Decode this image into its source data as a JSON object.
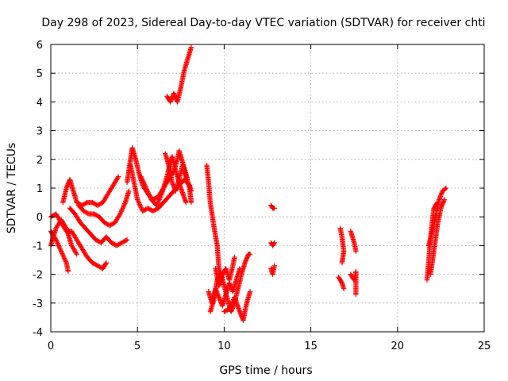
{
  "chart_data": {
    "type": "scatter",
    "title": "Day 298 of 2023, Sidereal Day-to-day VTEC variation (SDTVAR) for receiver chti",
    "xlabel": "GPS time / hours",
    "ylabel": "SDTVAR / TECUs",
    "xlim": [
      0,
      25
    ],
    "ylim": [
      -4,
      6
    ],
    "xticks": [
      0,
      5,
      10,
      15,
      20,
      25
    ],
    "yticks": [
      -4,
      -3,
      -2,
      -1,
      0,
      1,
      2,
      3,
      4,
      5,
      6
    ],
    "xtick_labels": [
      "0",
      "5",
      "10",
      "15",
      "20",
      "25"
    ],
    "ytick_labels": [
      "-4",
      "-3",
      "-2",
      "-1",
      "0",
      "1",
      "2",
      "3",
      "4",
      "5",
      "6"
    ],
    "grid": true,
    "marker": "+",
    "series": [
      {
        "name": "SDTVAR",
        "color": "#ff0000",
        "segments": [
          [
            [
              0.0,
              -0.5
            ],
            [
              0.3,
              -0.8
            ],
            [
              0.6,
              -1.2
            ],
            [
              0.9,
              -1.6
            ],
            [
              1.0,
              -1.9
            ]
          ],
          [
            [
              0.0,
              -1.0
            ],
            [
              0.3,
              -0.4
            ],
            [
              0.6,
              -0.1
            ],
            [
              0.9,
              -0.4
            ],
            [
              1.2,
              -1.0
            ],
            [
              1.5,
              -1.3
            ]
          ],
          [
            [
              0.0,
              0.0
            ],
            [
              0.3,
              0.1
            ],
            [
              0.6,
              -0.2
            ],
            [
              0.9,
              -0.5
            ],
            [
              1.2,
              -0.5
            ],
            [
              1.5,
              -0.8
            ],
            [
              1.8,
              -1.1
            ],
            [
              2.1,
              -1.4
            ],
            [
              2.4,
              -1.6
            ],
            [
              2.7,
              -1.7
            ],
            [
              3.0,
              -1.8
            ],
            [
              3.2,
              -1.6
            ]
          ],
          [
            [
              0.7,
              0.5
            ],
            [
              0.9,
              1.0
            ],
            [
              1.1,
              1.3
            ],
            [
              1.3,
              0.9
            ],
            [
              1.5,
              0.5
            ],
            [
              1.8,
              0.4
            ],
            [
              2.1,
              0.5
            ],
            [
              2.4,
              0.5
            ],
            [
              2.7,
              0.4
            ],
            [
              3.0,
              0.5
            ],
            [
              3.3,
              0.8
            ],
            [
              3.6,
              1.1
            ],
            [
              3.9,
              1.4
            ]
          ],
          [
            [
              1.1,
              0.3
            ],
            [
              1.4,
              0.1
            ],
            [
              1.7,
              -0.2
            ],
            [
              2.0,
              -0.4
            ],
            [
              2.3,
              -0.6
            ],
            [
              2.6,
              -0.8
            ],
            [
              2.9,
              -0.9
            ],
            [
              3.2,
              -0.7
            ],
            [
              3.5,
              -0.9
            ],
            [
              3.8,
              -1.0
            ],
            [
              4.1,
              -0.9
            ],
            [
              4.4,
              -0.8
            ]
          ],
          [
            [
              1.6,
              0.4
            ],
            [
              1.9,
              0.2
            ],
            [
              2.2,
              0.1
            ],
            [
              2.5,
              0.1
            ],
            [
              2.8,
              0.0
            ],
            [
              3.1,
              -0.2
            ],
            [
              3.4,
              -0.3
            ],
            [
              3.7,
              -0.2
            ],
            [
              4.0,
              0.1
            ],
            [
              4.3,
              0.5
            ],
            [
              4.5,
              0.9
            ]
          ],
          [
            [
              4.4,
              1.2
            ],
            [
              4.6,
              2.0
            ],
            [
              4.7,
              2.4
            ],
            [
              4.9,
              2.0
            ],
            [
              5.1,
              1.5
            ],
            [
              5.3,
              1.1
            ],
            [
              5.6,
              0.8
            ],
            [
              5.9,
              0.6
            ],
            [
              6.2,
              0.7
            ],
            [
              6.5,
              1.0
            ],
            [
              6.8,
              1.3
            ],
            [
              7.1,
              1.6
            ],
            [
              7.3,
              2.0
            ],
            [
              7.4,
              2.3
            ],
            [
              7.6,
              1.9
            ],
            [
              7.8,
              1.5
            ],
            [
              8.0,
              1.0
            ],
            [
              8.1,
              0.5
            ]
          ],
          [
            [
              4.6,
              1.8
            ],
            [
              4.8,
              1.2
            ],
            [
              5.0,
              0.6
            ],
            [
              5.3,
              0.2
            ],
            [
              5.6,
              0.3
            ],
            [
              5.9,
              0.2
            ],
            [
              6.2,
              0.3
            ],
            [
              6.5,
              0.5
            ],
            [
              6.8,
              0.7
            ],
            [
              7.1,
              0.9
            ],
            [
              7.4,
              1.1
            ],
            [
              7.7,
              1.3
            ],
            [
              8.0,
              1.1
            ],
            [
              8.1,
              0.9
            ]
          ],
          [
            [
              5.2,
              1.4
            ],
            [
              5.5,
              1.0
            ],
            [
              5.8,
              0.6
            ],
            [
              6.1,
              0.4
            ],
            [
              6.4,
              0.8
            ],
            [
              6.7,
              1.4
            ],
            [
              6.9,
              1.9
            ],
            [
              7.0,
              2.1
            ],
            [
              7.2,
              1.6
            ],
            [
              7.5,
              1.0
            ],
            [
              7.8,
              0.5
            ]
          ],
          [
            [
              6.6,
              2.2
            ],
            [
              6.8,
              1.8
            ],
            [
              7.0,
              1.2
            ],
            [
              7.2,
              0.9
            ],
            [
              7.4,
              1.3
            ],
            [
              7.6,
              1.8
            ],
            [
              7.8,
              1.4
            ]
          ],
          [
            [
              6.7,
              4.2
            ],
            [
              6.9,
              4.0
            ],
            [
              7.1,
              4.3
            ],
            [
              7.3,
              4.0
            ],
            [
              7.5,
              4.5
            ],
            [
              7.7,
              5.1
            ],
            [
              7.9,
              5.5
            ],
            [
              8.1,
              5.9
            ]
          ],
          [
            [
              9.0,
              1.8
            ],
            [
              9.1,
              1.2
            ],
            [
              9.2,
              0.5
            ],
            [
              9.4,
              -0.3
            ],
            [
              9.6,
              -1.0
            ],
            [
              9.7,
              -1.8
            ],
            [
              9.8,
              -2.3
            ]
          ],
          [
            [
              9.1,
              -2.6
            ],
            [
              9.3,
              -3.0
            ],
            [
              9.5,
              -2.5
            ],
            [
              9.7,
              -2.8
            ],
            [
              9.9,
              -3.1
            ],
            [
              10.1,
              -2.7
            ],
            [
              10.3,
              -2.3
            ],
            [
              10.5,
              -2.6
            ],
            [
              10.7,
              -2.2
            ],
            [
              10.9,
              -1.8
            ]
          ],
          [
            [
              9.2,
              -3.3
            ],
            [
              9.4,
              -2.9
            ],
            [
              9.6,
              -2.2
            ],
            [
              9.8,
              -1.9
            ],
            [
              10.0,
              -2.4
            ],
            [
              10.2,
              -2.9
            ],
            [
              10.4,
              -3.3
            ],
            [
              10.6,
              -3.0
            ],
            [
              10.8,
              -2.5
            ],
            [
              11.0,
              -2.0
            ],
            [
              11.2,
              -1.6
            ],
            [
              11.4,
              -1.3
            ],
            [
              11.5,
              -1.3
            ]
          ],
          [
            [
              9.5,
              -1.8
            ],
            [
              9.7,
              -2.4
            ],
            [
              9.9,
              -2.0
            ],
            [
              10.1,
              -1.8
            ],
            [
              10.3,
              -2.2
            ],
            [
              10.5,
              -1.7
            ],
            [
              10.6,
              -1.4
            ]
          ],
          [
            [
              10.0,
              -3.3
            ],
            [
              10.3,
              -3.2
            ],
            [
              10.6,
              -2.8
            ],
            [
              10.9,
              -3.3
            ],
            [
              11.1,
              -3.6
            ],
            [
              11.3,
              -3.0
            ],
            [
              11.5,
              -2.6
            ]
          ],
          [
            [
              12.7,
              0.4
            ],
            [
              12.8,
              0.3
            ],
            [
              12.9,
              0.3
            ]
          ],
          [
            [
              12.7,
              -0.9
            ],
            [
              12.8,
              -1.0
            ],
            [
              12.9,
              -0.9
            ]
          ],
          [
            [
              12.7,
              -1.8
            ],
            [
              12.8,
              -2.0
            ],
            [
              12.9,
              -1.7
            ]
          ],
          [
            [
              16.7,
              -0.4
            ],
            [
              16.8,
              -0.7
            ],
            [
              16.9,
              -1.2
            ],
            [
              16.8,
              -1.6
            ]
          ],
          [
            [
              16.6,
              -2.1
            ],
            [
              16.8,
              -2.3
            ],
            [
              16.9,
              -2.5
            ]
          ],
          [
            [
              17.3,
              -0.5
            ],
            [
              17.5,
              -0.9
            ],
            [
              17.6,
              -1.2
            ]
          ],
          [
            [
              17.3,
              -2.0
            ],
            [
              17.5,
              -2.2
            ],
            [
              17.6,
              -1.9
            ],
            [
              17.6,
              -2.7
            ]
          ],
          [
            [
              21.7,
              -2.2
            ],
            [
              21.8,
              -1.5
            ],
            [
              21.9,
              -0.8
            ],
            [
              22.0,
              -0.2
            ],
            [
              22.1,
              0.3
            ],
            [
              22.3,
              0.5
            ]
          ],
          [
            [
              21.8,
              -1.0
            ],
            [
              22.0,
              -0.5
            ],
            [
              22.2,
              0.0
            ],
            [
              22.4,
              0.6
            ],
            [
              22.6,
              0.9
            ],
            [
              22.8,
              1.0
            ]
          ],
          [
            [
              21.9,
              -2.0
            ],
            [
              22.1,
              -1.2
            ],
            [
              22.3,
              -0.3
            ],
            [
              22.5,
              0.3
            ],
            [
              22.7,
              0.6
            ]
          ]
        ]
      }
    ]
  }
}
